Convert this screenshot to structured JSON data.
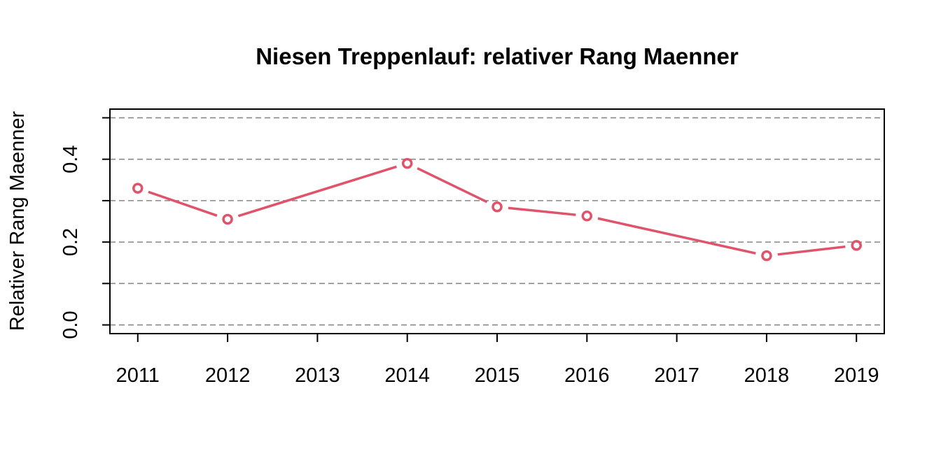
{
  "chart_data": {
    "type": "line",
    "title": "Niesen Treppenlauf: relativer Rang Maenner",
    "xlabel": "",
    "ylabel": "Relativer Rang Maenner",
    "x_ticks": [
      "2011",
      "2012",
      "2013",
      "2014",
      "2015",
      "2016",
      "2017",
      "2018",
      "2019"
    ],
    "y_ticks": [
      "0.0",
      "0.2",
      "0.4"
    ],
    "y_gridlines": [
      0,
      0.1,
      0.2,
      0.3,
      0.4,
      0.5
    ],
    "grid": "horizontal dashed",
    "xlim": [
      2010.69,
      2019.31
    ],
    "ylim": [
      -0.021,
      0.521
    ],
    "series": [
      {
        "color": "#DF536B",
        "marker": "open-circle",
        "points": [
          {
            "x": 2011,
            "y": 0.33
          },
          {
            "x": 2012,
            "y": 0.255
          },
          {
            "x": 2014,
            "y": 0.39
          },
          {
            "x": 2015,
            "y": 0.285
          },
          {
            "x": 2016,
            "y": 0.263
          },
          {
            "x": 2018,
            "y": 0.167
          },
          {
            "x": 2019,
            "y": 0.192
          }
        ]
      }
    ]
  }
}
